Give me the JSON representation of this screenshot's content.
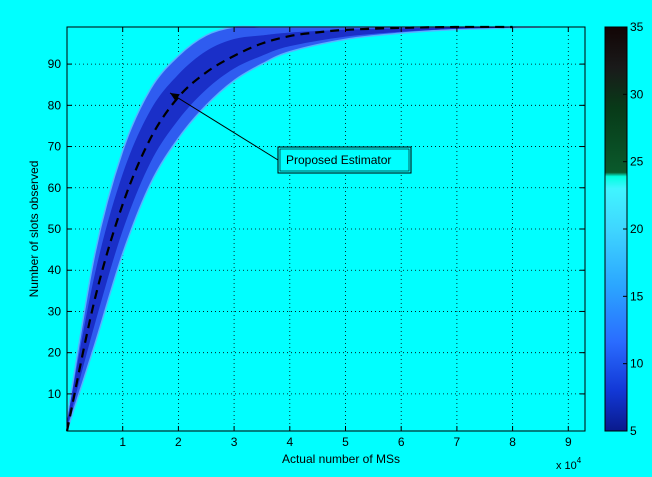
{
  "chart_data": {
    "type": "heatmap",
    "title": "",
    "xlabel": "Actual number of MSs",
    "ylabel": "Number of slots observed",
    "x_multiplier": "x 10",
    "x_multiplier_exp": "4",
    "xlim": [
      0,
      9.3
    ],
    "ylim": [
      1,
      99
    ],
    "x_ticks": [
      1,
      2,
      3,
      4,
      5,
      6,
      7,
      8,
      9
    ],
    "y_ticks": [
      10,
      20,
      30,
      40,
      50,
      60,
      70,
      80,
      90
    ],
    "grid": true,
    "colorbar": {
      "range": [
        5,
        35
      ],
      "ticks": [
        10,
        15,
        20,
        25,
        30,
        35
      ],
      "bottom_label": "5",
      "placement": "right"
    },
    "series": [
      {
        "x": [
          0,
          0.5,
          1.0,
          1.5,
          2.0,
          2.5,
          3.0,
          3.5,
          4.0,
          4.5,
          5.0,
          6.0,
          7.0,
          8.0
        ],
        "y": [
          1,
          33,
          56,
          72,
          82,
          88,
          92,
          95,
          96.8,
          97.7,
          98.3,
          98.8,
          99,
          99
        ]
      }
    ],
    "band": {
      "x": [
        0,
        0.5,
        1.0,
        1.5,
        2.0,
        2.5,
        3.0,
        3.5,
        4.0,
        5.0,
        6.0,
        7.0,
        8.0,
        8.5
      ],
      "y_upper": [
        4,
        44,
        69,
        84,
        92,
        97,
        99,
        99,
        99,
        99,
        99,
        99,
        99,
        99
      ],
      "y_lower": [
        1,
        22,
        44,
        61,
        72,
        80,
        86,
        90,
        93,
        96,
        97.5,
        98.4,
        98.8,
        99
      ]
    },
    "annotation": {
      "text": "Proposed Estimator",
      "x": 1.85,
      "y": 83
    }
  },
  "colors": {
    "background": "#00ffff",
    "band_inner": "#1a2fc8",
    "band_outer": "#3d72ff",
    "band_edge": "#55b4ff",
    "estimator_line": "#000000",
    "grid": "#000000"
  }
}
